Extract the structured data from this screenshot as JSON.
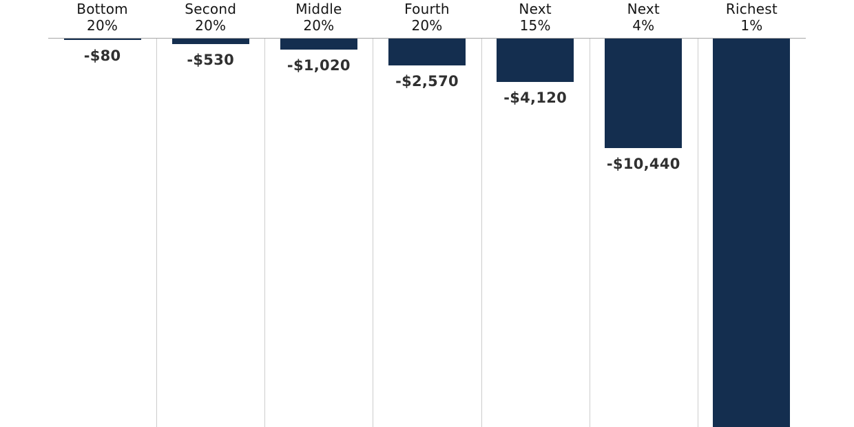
{
  "chart_data": {
    "type": "bar",
    "title": "",
    "xlabel": "",
    "ylabel": "",
    "legend": "none",
    "grid": "vertical-column-separators",
    "baseline": 0,
    "bar_direction": "down-from-zero-line",
    "categories": [
      "Bottom 20%",
      "Second 20%",
      "Middle 20%",
      "Fourth 20%",
      "Next 15%",
      "Next 4%",
      "Richest 1%"
    ],
    "values": [
      -80,
      -530,
      -1020,
      -2570,
      -4120,
      -10440,
      null
    ],
    "value_labels": [
      "-$80",
      "-$530",
      "-$1,020",
      "-$2,570",
      "-$4,120",
      "-$10,440",
      ""
    ],
    "note": "The Richest 1% bar extends past the bottom edge of the image; its value label is not visible.",
    "columns": [
      {
        "line1": "Bottom",
        "line2": "20%",
        "value": -80,
        "value_label": "-$80",
        "clipped": false
      },
      {
        "line1": "Second",
        "line2": "20%",
        "value": -530,
        "value_label": "-$530",
        "clipped": false
      },
      {
        "line1": "Middle",
        "line2": "20%",
        "value": -1020,
        "value_label": "-$1,020",
        "clipped": false
      },
      {
        "line1": "Fourth",
        "line2": "20%",
        "value": -2570,
        "value_label": "-$2,570",
        "clipped": false
      },
      {
        "line1": "Next",
        "line2": "15%",
        "value": -4120,
        "value_label": "-$4,120",
        "clipped": false
      },
      {
        "line1": "Next",
        "line2": "4%",
        "value": -10440,
        "value_label": "-$10,440",
        "clipped": false
      },
      {
        "line1": "Richest",
        "line2": "1%",
        "value": null,
        "value_label": "",
        "clipped": true
      }
    ]
  },
  "colors": {
    "background": "#ffffff",
    "bar_fill": "#142e4f",
    "axis_line": "#a6a6a6",
    "gridline": "#cccccc",
    "category_text": "#151515",
    "value_text": "#303030"
  }
}
